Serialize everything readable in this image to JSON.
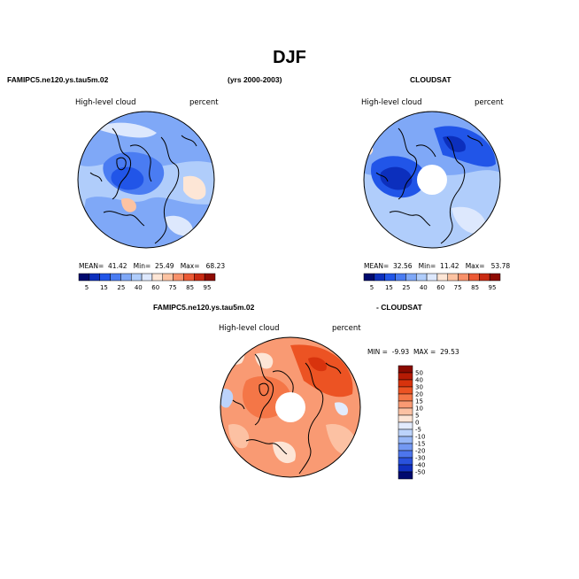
{
  "title": "DJF",
  "header": {
    "left": "FAMIPC5.ne120.ys.tau5m.02",
    "center": "(yrs 2000-2003)",
    "right": "CLOUDSAT"
  },
  "diff_header": {
    "left": "FAMIPC5.ne120.ys.tau5m.02",
    "right": "- CLOUDSAT"
  },
  "panels": [
    {
      "variable": "High-level cloud",
      "units": "percent",
      "stats": {
        "mean_label": "MEAN=",
        "mean": "41.42",
        "min_label": "Min=",
        "min": "25.49",
        "max_label": "Max=",
        "max": "68.23"
      }
    },
    {
      "variable": "High-level cloud",
      "units": "percent",
      "stats": {
        "mean_label": "MEAN=",
        "mean": "32.56",
        "min_label": "Min=",
        "min": "11.42",
        "max_label": "Max=",
        "max": "53.78"
      }
    },
    {
      "variable": "High-level cloud",
      "units": "percent",
      "stats": {
        "min_label": "MIN =",
        "min": "-9.93",
        "max_label": "MAX =",
        "max": "29.53"
      }
    }
  ],
  "colorbar_abs": {
    "labels": [
      "5",
      "15",
      "25",
      "40",
      "60",
      "75",
      "85",
      "95"
    ],
    "colors": [
      "#000a6e",
      "#0c2fbd",
      "#2155e8",
      "#4a7cf2",
      "#7fa8f7",
      "#b0cdfb",
      "#dde8fd",
      "#fde6d6",
      "#fcc3a2",
      "#f8916a",
      "#ec5a35",
      "#c92a12",
      "#8e0b02"
    ]
  },
  "colorbar_diff": {
    "labels": [
      "50",
      "40",
      "30",
      "20",
      "15",
      "10",
      "5",
      "0",
      "-5",
      "-10",
      "-15",
      "-20",
      "-30",
      "-40",
      "-50"
    ],
    "colors": [
      "#8a0a00",
      "#b51b04",
      "#d8330d",
      "#ec5323",
      "#f47647",
      "#f99a73",
      "#fcc1a3",
      "#fde5d6",
      "#e2ebfd",
      "#bcd3fb",
      "#97b7f7",
      "#7398f2",
      "#4d76ec",
      "#2a52dd",
      "#1130c0",
      "#000a6e"
    ]
  },
  "colors": {
    "ocean_line": "#000000",
    "hole": "#ffffff"
  }
}
